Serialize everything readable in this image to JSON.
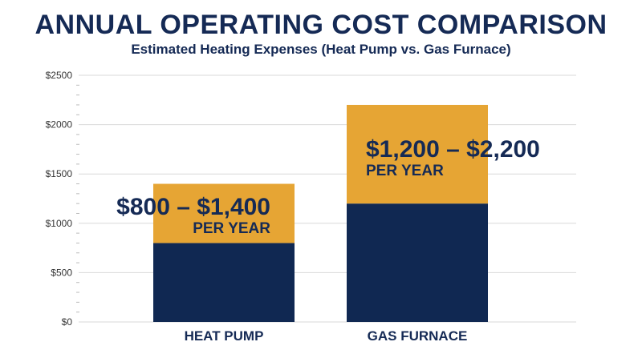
{
  "chart_data": {
    "type": "bar",
    "title": "ANNUAL OPERATING COST COMPARISON",
    "subtitle": "Estimated Heating Expenses (Heat Pump vs. Gas Furnace)",
    "categories": [
      "HEAT PUMP",
      "GAS FURNACE"
    ],
    "range_low": [
      800,
      1200
    ],
    "range_high": [
      1400,
      2200
    ],
    "range_labels": [
      "$800 – $1,400",
      "$1,200 – $2,200"
    ],
    "per_year_label": "PER YEAR",
    "ylim": [
      0,
      2500
    ],
    "yticks": [
      0,
      500,
      1000,
      1500,
      2000,
      2500
    ],
    "ytick_labels": [
      "$0",
      "$500",
      "$1000",
      "$1500",
      "$2000",
      "$2500"
    ],
    "grid": true,
    "colors": {
      "base": "#102852",
      "range": "#e6a534",
      "text": "#152a55",
      "grid": "#d9d9d9"
    }
  }
}
